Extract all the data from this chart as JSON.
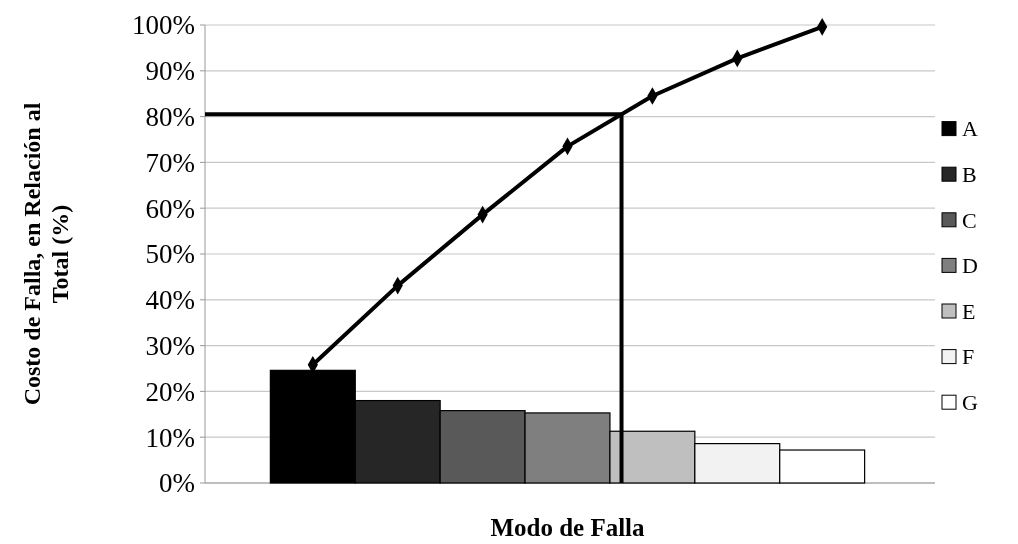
{
  "chart_data": {
    "type": "bar",
    "xlabel": "Modo de Falla",
    "ylabel": "Costo de Falla, en Relación al Total (%)",
    "categories": [
      null,
      null,
      null,
      null,
      null,
      null,
      null
    ],
    "series": [
      {
        "name": "A",
        "color": "#000000",
        "values": [
          24.6,
          null,
          null,
          null,
          null,
          null,
          null
        ]
      },
      {
        "name": "B",
        "color": "#262626",
        "values": [
          null,
          18,
          null,
          null,
          null,
          null,
          null
        ]
      },
      {
        "name": "C",
        "color": "#595959",
        "values": [
          null,
          null,
          15.8,
          null,
          null,
          null,
          null
        ]
      },
      {
        "name": "D",
        "color": "#7f7f7f",
        "values": [
          null,
          null,
          null,
          15.3,
          null,
          null,
          null
        ]
      },
      {
        "name": "E",
        "color": "#bfbfbf",
        "values": [
          null,
          null,
          null,
          null,
          11.3,
          null,
          null
        ]
      },
      {
        "name": "F",
        "color": "#f2f2f2",
        "values": [
          null,
          null,
          null,
          null,
          null,
          8.6,
          null
        ]
      },
      {
        "name": "G",
        "color": "#ffffff",
        "values": [
          null,
          null,
          null,
          null,
          null,
          null,
          7.2
        ]
      },
      {
        "type": "line",
        "color": "#000000",
        "marker": "diamond",
        "values": [
          25.8,
          43.1,
          58.6,
          73.5,
          84.5,
          92.7,
          99.6
        ]
      }
    ],
    "ref_lines": [
      {
        "axis": "y",
        "value": 80.5,
        "color": "#000000"
      }
    ],
    "ylim": [
      0,
      100
    ],
    "yticks": [
      {
        "value": 0,
        "label": "0%"
      },
      {
        "value": 10,
        "label": "10%"
      },
      {
        "value": 20,
        "label": "20%"
      },
      {
        "value": 30,
        "label": "30%"
      },
      {
        "value": 40,
        "label": "40%"
      },
      {
        "value": 50,
        "label": "50%"
      },
      {
        "value": 60,
        "label": "60%"
      },
      {
        "value": 70,
        "label": "70%"
      },
      {
        "value": 80,
        "label": "80%"
      },
      {
        "value": 90,
        "label": "90%"
      },
      {
        "value": 100,
        "label": "100%"
      }
    ],
    "grid": "y",
    "legend": "right"
  }
}
